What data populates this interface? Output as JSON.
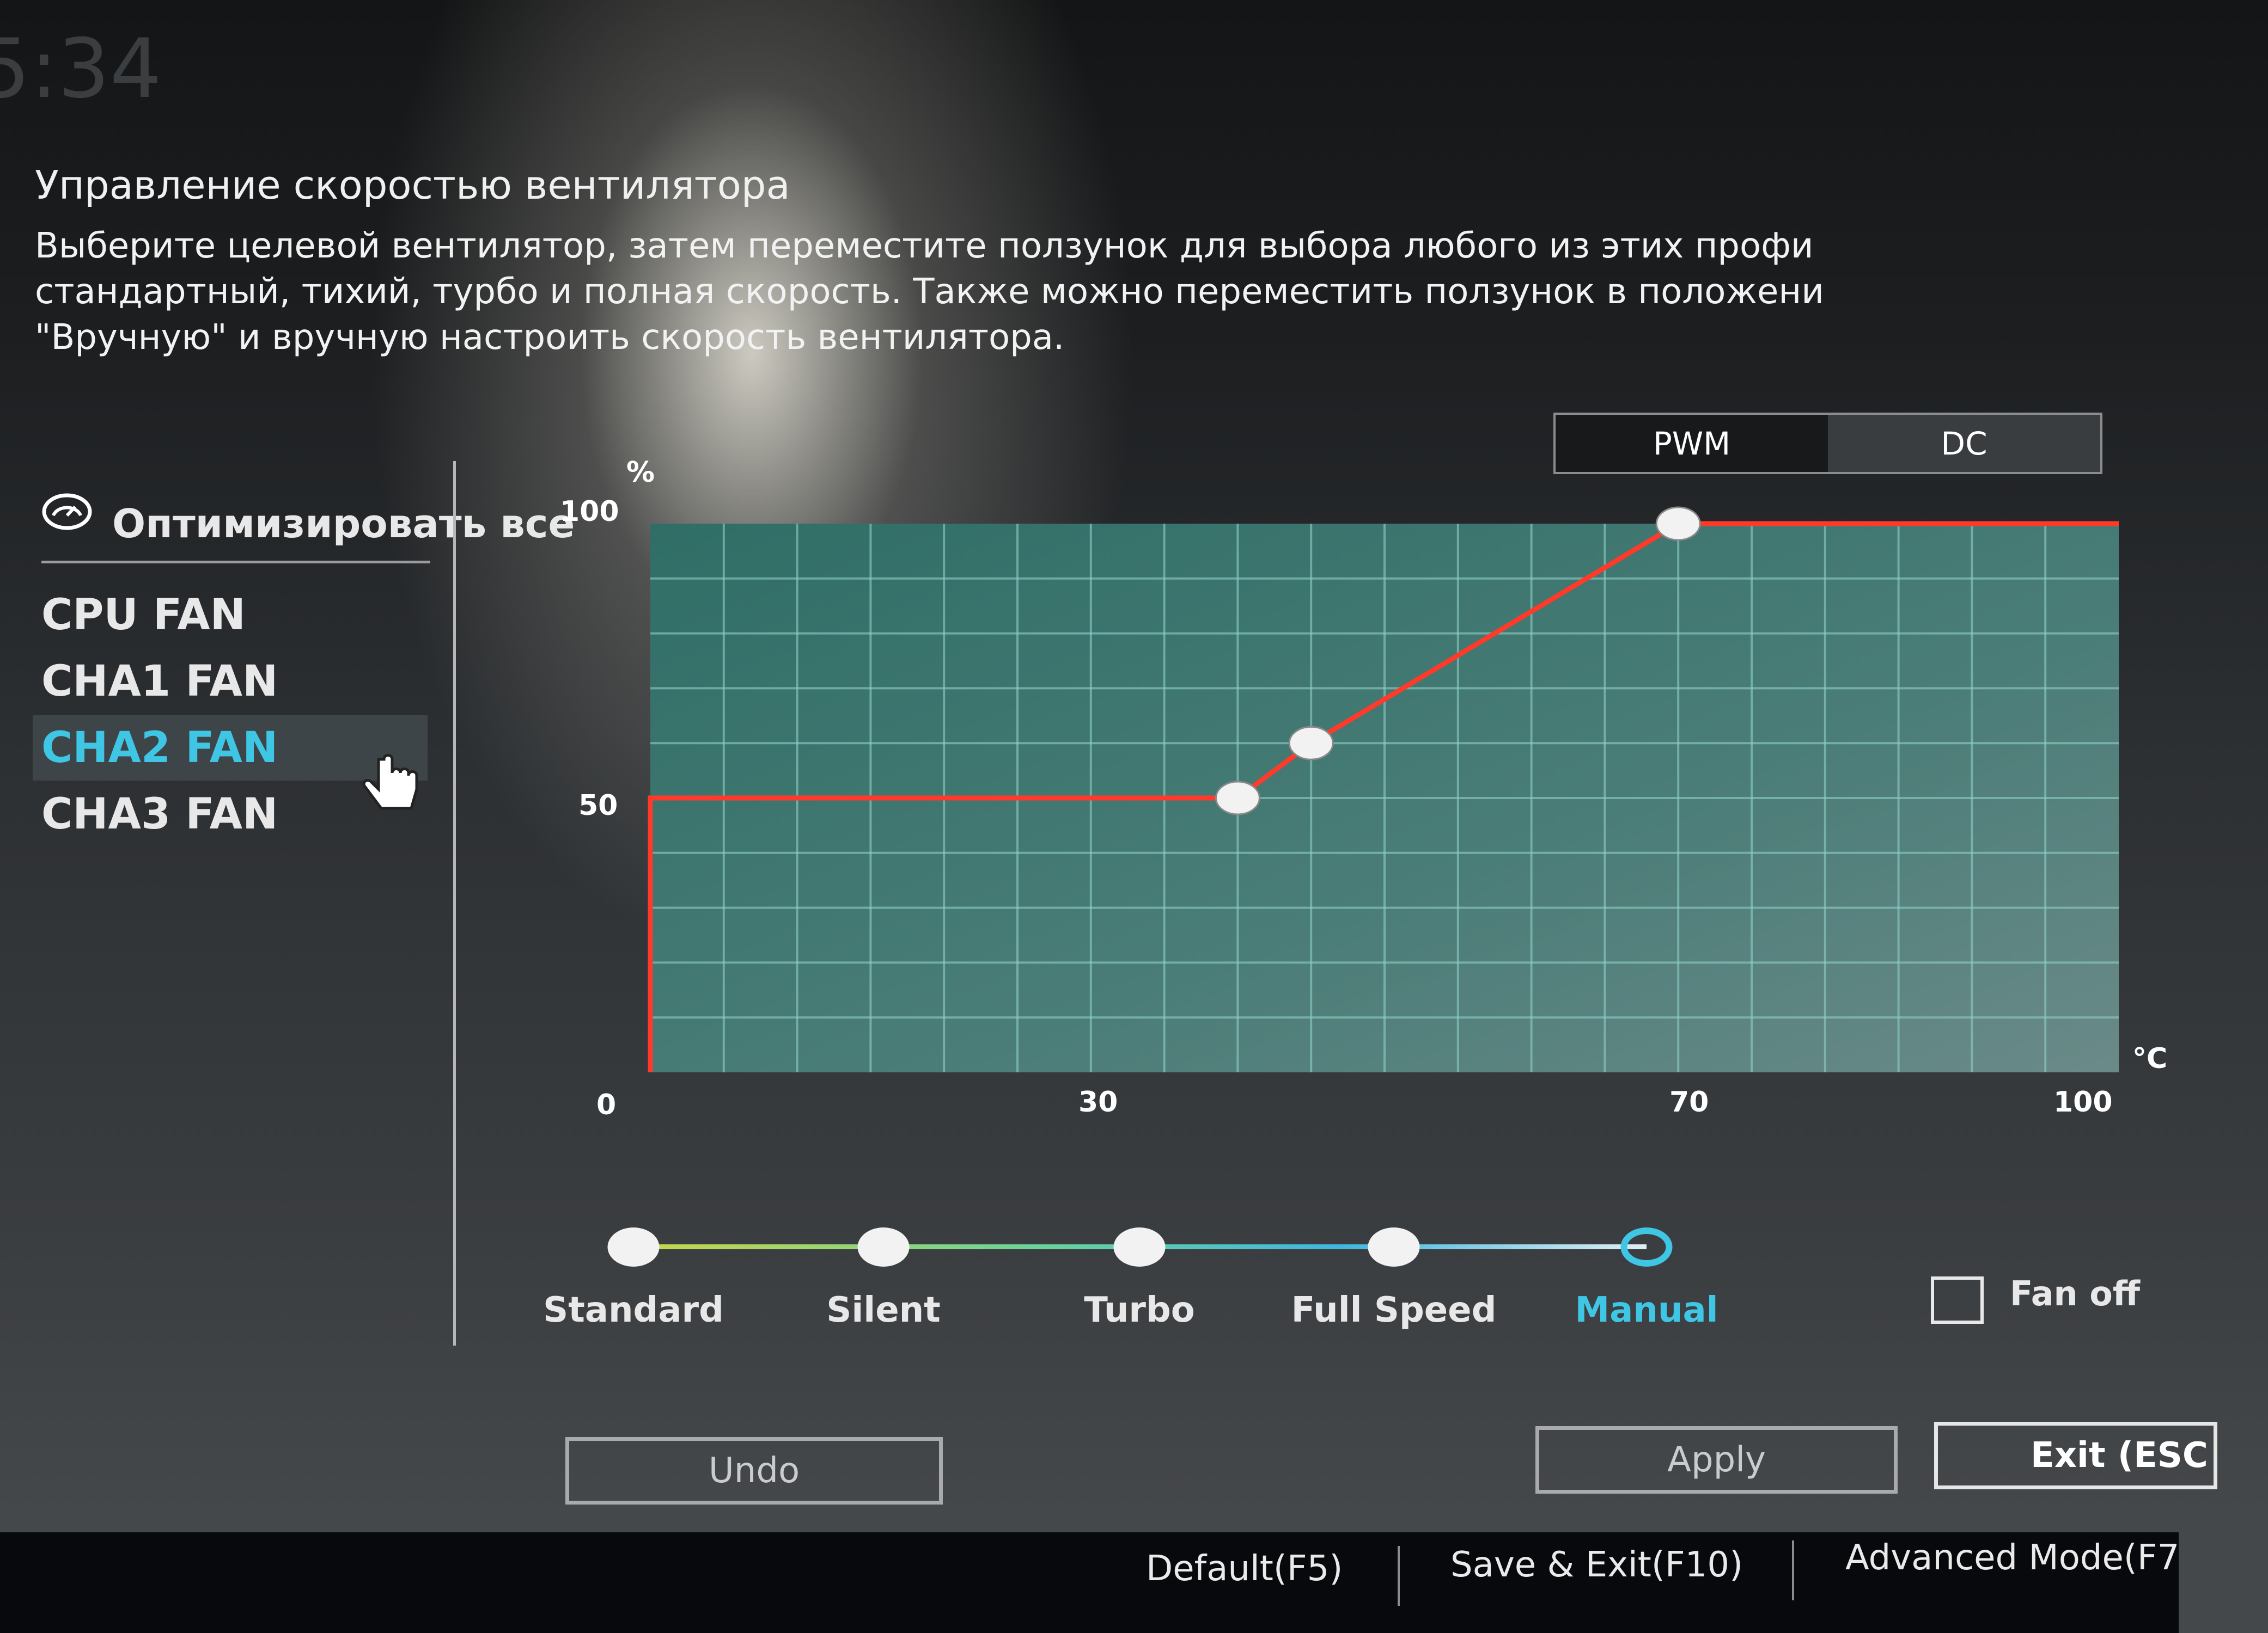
{
  "clock": "5:34",
  "header": {
    "title": "Управление скоростью вентилятора",
    "description": [
      "Выберите целевой вентилятор, затем переместите ползунок для выбора любого из этих профи",
      "стандартный, тихий, турбо и полная скорость. Также можно переместить ползунок в положени",
      "\"Вручную\" и вручную настроить скорость вентилятора."
    ]
  },
  "mode_toggle": {
    "options": [
      "PWM",
      "DC"
    ],
    "selected": "PWM"
  },
  "sidebar": {
    "optimize_label": "Оптимизировать все",
    "fans": [
      {
        "label": "CPU FAN",
        "selected": false
      },
      {
        "label": "CHA1 FAN",
        "selected": false
      },
      {
        "label": "CHA2 FAN",
        "selected": true
      },
      {
        "label": "CHA3 FAN",
        "selected": false
      }
    ]
  },
  "chart_data": {
    "type": "line",
    "ylabel": "%",
    "xlabel": "°C",
    "xlim": [
      0,
      100
    ],
    "ylim": [
      0,
      100
    ],
    "x_ticks": [
      "0",
      "30",
      "70",
      "100"
    ],
    "y_ticks": [
      "0",
      "50",
      "100"
    ],
    "grid": true,
    "points": [
      [
        40,
        50
      ],
      [
        45,
        60
      ],
      [
        70,
        100
      ]
    ],
    "line": [
      [
        0,
        0
      ],
      [
        0,
        50
      ],
      [
        40,
        50
      ],
      [
        45,
        60
      ],
      [
        70,
        100
      ],
      [
        100,
        100
      ]
    ],
    "line_color": "#ff3a2a"
  },
  "profiles": {
    "items": [
      "Standard",
      "Silent",
      "Turbo",
      "Full Speed",
      "Manual"
    ],
    "selected": "Manual"
  },
  "fan_off": {
    "label": "Fan off",
    "checked": false
  },
  "buttons": {
    "undo": "Undo",
    "apply": "Apply",
    "exit": "Exit (ESC"
  },
  "bottom_bar": {
    "default": "Default(F5)",
    "save_exit": "Save & Exit(F10)",
    "advanced": "Advanced Mode(F7"
  },
  "colors": {
    "accent": "#3ec6e4",
    "curve": "#ff3a2a"
  }
}
